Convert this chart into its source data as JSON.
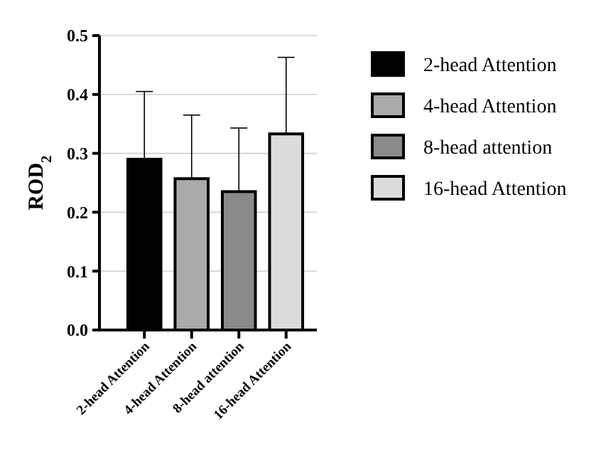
{
  "chart_data": {
    "type": "bar",
    "ylabel": "ROD$_{2}$",
    "categories": [
      "2-head Attention",
      "4-head Attention",
      "8-head attention",
      "16-head Attention"
    ],
    "series": [
      {
        "name": "2-head Attention",
        "color": "#000000",
        "values": [
          0.29,
          null,
          null,
          null
        ],
        "errors": [
          [
            0.29,
            0.405
          ],
          null,
          null,
          null
        ]
      },
      {
        "name": "4-head Attention",
        "color": "#aaaaaa",
        "values": [
          null,
          0.257,
          null,
          null
        ],
        "errors": [
          null,
          [
            0.257,
            0.365
          ],
          null,
          null
        ]
      },
      {
        "name": "8-head attention",
        "color": "#8a8a8a",
        "values": [
          null,
          null,
          0.235,
          null
        ],
        "errors": [
          null,
          null,
          [
            0.235,
            0.343
          ],
          null
        ]
      },
      {
        "name": "16-head Attention",
        "color": "#dcdcdc",
        "values": [
          null,
          null,
          null,
          0.333
        ],
        "errors": [
          null,
          null,
          null,
          [
            0.333,
            0.463
          ]
        ]
      }
    ],
    "ylim": [
      0,
      0.5
    ],
    "yticks": [
      {
        "value": 0,
        "label": "0.0"
      },
      0.1,
      0.2,
      0.3,
      0.4,
      0.5
    ],
    "grid": "y",
    "legend": "right"
  }
}
